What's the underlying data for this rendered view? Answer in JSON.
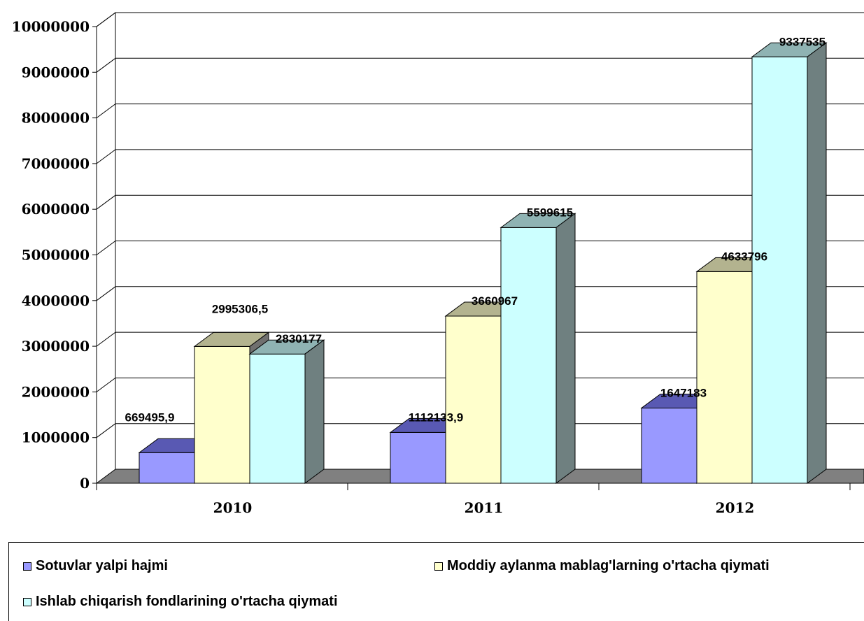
{
  "chart_data": {
    "type": "bar",
    "categories": [
      "2010",
      "2011",
      "2012"
    ],
    "series": [
      {
        "name": "Sotuvlar yalpi hajmi",
        "values": [
          669495.9,
          1112133.9,
          1647183
        ],
        "labels": [
          "669495,9",
          "1112133,9",
          "1647183"
        ],
        "color": "#9999ff"
      },
      {
        "name": "Moddiy aylanma mablag'larning o'rtacha qiymati",
        "values": [
          2995306.5,
          3660967,
          4633796
        ],
        "labels": [
          "2995306,5",
          "3660967",
          "4633796"
        ],
        "color": "#ffffcc"
      },
      {
        "name": "Ishlab chiqarish fondlarining o'rtacha qiymati",
        "values": [
          2830177,
          5599615,
          9337535
        ],
        "labels": [
          "2830177",
          "5599615",
          "9337535"
        ],
        "color": "#ccffff"
      }
    ],
    "yticks": [
      "0",
      "1000000",
      "2000000",
      "3000000",
      "4000000",
      "5000000",
      "6000000",
      "7000000",
      "8000000",
      "9000000",
      "10000000"
    ],
    "ylim": [
      0,
      10000000
    ],
    "grid": true,
    "legend_position": "bottom"
  },
  "legend": {
    "item1": "Sotuvlar yalpi hajmi",
    "item2": "Moddiy aylanma mablag'larning o'rtacha qiymati",
    "item3": "Ishlab chiqarish fondlarining o'rtacha qiymati"
  }
}
